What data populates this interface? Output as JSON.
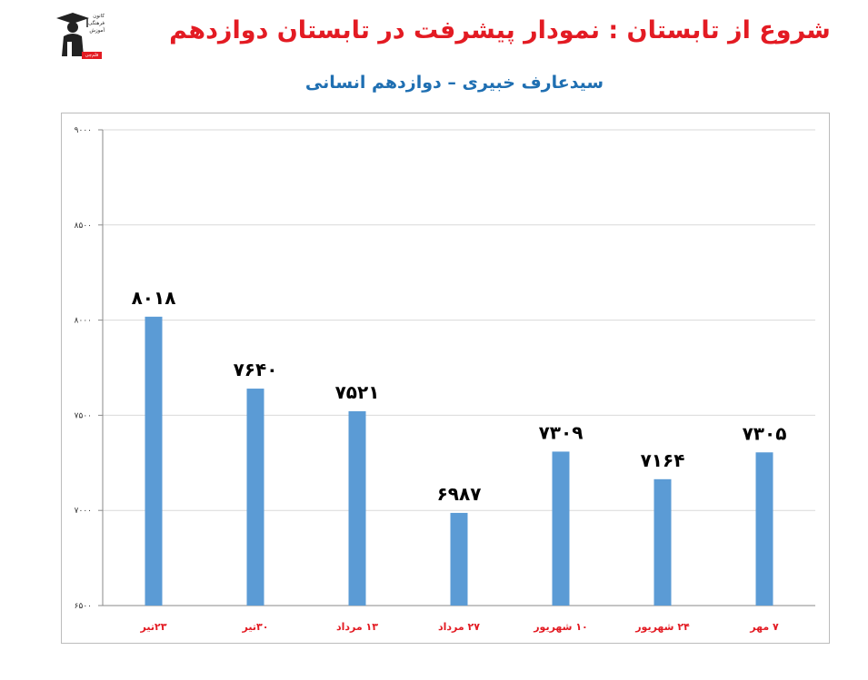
{
  "header": {
    "title": "شروع از تابستان : نمودار پیشرفت در تابستان دوازدهم",
    "subtitle": "سیدعارف خبیری – دوازدهم انسانی"
  },
  "logo": {
    "lines": [
      "کانون",
      "فرهنگی",
      "آموزش"
    ],
    "badge": "قلم‌چی"
  },
  "chart_data": {
    "type": "bar",
    "categories": [
      "۲۳تیر",
      "۳۰تیر",
      "۱۳ مرداد",
      "۲۷ مرداد",
      "۱۰ شهریور",
      "۲۴ شهریور",
      "۷ مهر"
    ],
    "values": [
      8018,
      7640,
      7521,
      6987,
      7309,
      7164,
      7305
    ],
    "value_labels": [
      "۸۰۱۸",
      "۷۶۴۰",
      "۷۵۲۱",
      "۶۹۸۷",
      "۷۳۰۹",
      "۷۱۶۴",
      "۷۳۰۵"
    ],
    "ylim": [
      6500,
      9000
    ],
    "yticks": [
      6500,
      7000,
      7500,
      8000,
      8500,
      9000
    ],
    "ytick_labels": [
      "۶۵۰۰",
      "۷۰۰۰",
      "۷۵۰۰",
      "۸۰۰۰",
      "۸۵۰۰",
      "۹۰۰۰"
    ],
    "grid": true,
    "legend": "none",
    "colors": {
      "bar": "#5b9bd5",
      "category_label": "#e31b23",
      "value_label": "#000000",
      "grid": "#d9d9d9"
    }
  }
}
